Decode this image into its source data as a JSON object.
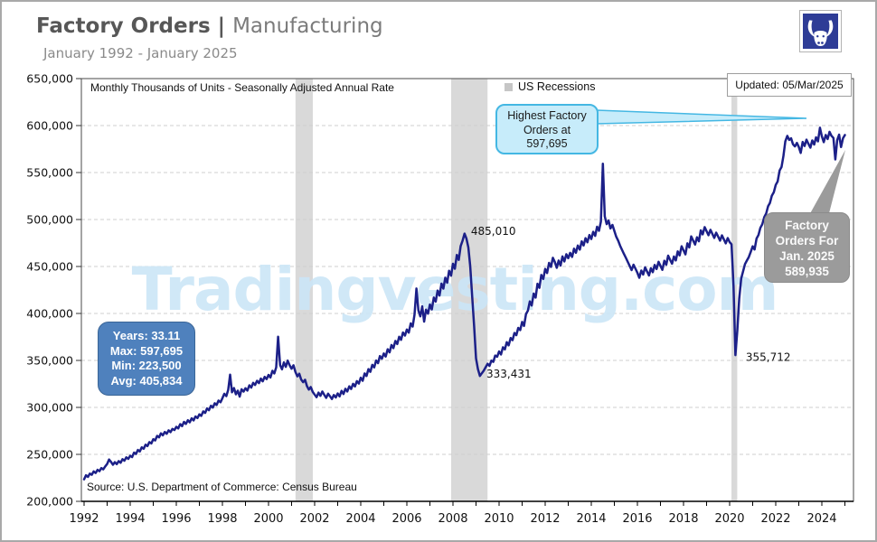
{
  "header": {
    "title_bold": "Factory Orders |",
    "title_regular": "Manufacturing",
    "subtitle": "January 1992 - January 2025"
  },
  "logo": {
    "name": "Tradingvesting bull logo",
    "bg_color": "#2e3c96"
  },
  "chart_data": {
    "type": "line",
    "title": "Factory Orders | Manufacturing",
    "subtitle": "January 1992 - January 2025",
    "units_label": "Monthly Thousands of Units - Seasonally Adjusted Annual Rate",
    "updated": "Updated: 05/Mar/2025",
    "source": "Source: U.S. Department of Commerce: Census Bureau",
    "watermark": "Tradingvesting.com",
    "watermark_color": "#cbe6f7",
    "line_color": "#1c2088",
    "recession_color": "#d9d9d9",
    "legend": [
      {
        "label": "US Recessions",
        "color": "#c6c6c6"
      }
    ],
    "ylim": [
      200000,
      650000
    ],
    "y_ticks": [
      200000,
      250000,
      300000,
      350000,
      400000,
      450000,
      500000,
      550000,
      600000,
      650000
    ],
    "x_ticks": [
      1992,
      1994,
      1996,
      1998,
      2000,
      2002,
      2004,
      2006,
      2008,
      2010,
      2012,
      2014,
      2016,
      2018,
      2020,
      2022,
      2024
    ],
    "grid": true,
    "legend_position": "top-center",
    "recessions": [
      [
        2001.17,
        2001.92
      ],
      [
        2007.92,
        2009.5
      ],
      [
        2020.08,
        2020.33
      ]
    ],
    "stats_box": {
      "lines": [
        "Years: 33.11",
        "Max: 597,695",
        "Min: 223,500",
        "Avg: 405,834"
      ]
    },
    "callout_highest": {
      "lines": [
        "Highest Factory",
        "Orders at",
        "597,695"
      ]
    },
    "callout_latest": {
      "lines": [
        "Factory",
        "Orders For",
        "Jan. 2025",
        "589,935"
      ]
    },
    "annotations": [
      {
        "label": "485,010",
        "year": 2008.78,
        "value": 483500
      },
      {
        "label": "333,431",
        "year": 2009.45,
        "value": 331500
      },
      {
        "label": "355,712",
        "year": 2020.7,
        "value": 349500
      }
    ],
    "series": {
      "name": "Factory Orders (Manufacturing)",
      "start_year": 1992,
      "frequency": "monthly",
      "values": [
        223500,
        227800,
        226100,
        229500,
        228300,
        231900,
        230200,
        233600,
        232100,
        235400,
        234000,
        237200,
        239800,
        244500,
        242000,
        238900,
        241700,
        239600,
        242800,
        241100,
        244900,
        243300,
        246800,
        245200,
        248600,
        247100,
        251900,
        250400,
        254700,
        253100,
        257500,
        256000,
        260300,
        258800,
        263100,
        261600,
        266200,
        264800,
        269700,
        268100,
        272400,
        270300,
        273800,
        271900,
        275600,
        273700,
        277100,
        275900,
        279300,
        277600,
        282200,
        280100,
        284600,
        282400,
        286300,
        284100,
        288500,
        286200,
        290400,
        288700,
        292600,
        291000,
        295800,
        294100,
        298900,
        297000,
        301700,
        299800,
        304400,
        302600,
        307300,
        305500,
        309800,
        314500,
        312000,
        318700,
        334800,
        316200,
        320600,
        313900,
        317800,
        311400,
        319300,
        316800,
        320400,
        317900,
        323600,
        321100,
        326200,
        323800,
        328400,
        325900,
        330700,
        327800,
        332500,
        330100,
        334600,
        331800,
        338900,
        336200,
        342700,
        375300,
        345100,
        340600,
        347900,
        343200,
        349800,
        344700,
        341200,
        344800,
        337600,
        333100,
        335900,
        329700,
        326800,
        329400,
        322700,
        318900,
        321600,
        316400,
        313700,
        310900,
        315800,
        312300,
        316900,
        313500,
        310200,
        314600,
        311800,
        308900,
        313200,
        310600,
        314900,
        311700,
        317600,
        314200,
        319800,
        316900,
        322400,
        319600,
        325100,
        322300,
        328000,
        325400,
        331600,
        328400,
        336200,
        333500,
        340800,
        337900,
        345300,
        342600,
        349900,
        347100,
        354600,
        351800,
        357400,
        354100,
        361900,
        358600,
        366400,
        363100,
        370800,
        367500,
        375200,
        371900,
        379700,
        376400,
        382900,
        379600,
        389400,
        386100,
        398800,
        426500,
        403200,
        396900,
        407600,
        391300,
        404100,
        399800,
        409500,
        404200,
        416900,
        412600,
        424300,
        419000,
        431700,
        426400,
        438100,
        432800,
        445500,
        440200,
        452900,
        447600,
        462300,
        457000,
        471700,
        477400,
        485010,
        479700,
        470400,
        450100,
        418800,
        386500,
        352200,
        340900,
        333431,
        336300,
        339000,
        342700,
        346400,
        344100,
        349800,
        348500,
        355200,
        353900,
        359600,
        356300,
        364000,
        361700,
        369400,
        366100,
        373800,
        371500,
        379200,
        376900,
        384600,
        382300,
        391000,
        386700,
        399400,
        403100,
        412800,
        408500,
        421200,
        416900,
        431600,
        427300,
        441000,
        436700,
        447400,
        443100,
        453800,
        449500,
        459200,
        454900,
        448600,
        456300,
        451000,
        460700,
        455400,
        463100,
        458800,
        464500,
        460200,
        468900,
        464600,
        472300,
        468000,
        476700,
        472400,
        480100,
        475800,
        483500,
        479200,
        486900,
        482600,
        492300,
        488000,
        497700,
        559400,
        503400,
        495100,
        498800,
        490500,
        494200,
        487900,
        481600,
        477300,
        472000,
        467700,
        463400,
        459100,
        454800,
        450500,
        446200,
        451900,
        447600,
        443300,
        438000,
        445700,
        441400,
        449100,
        444800,
        440500,
        448200,
        443900,
        451600,
        447300,
        455000,
        450700,
        446400,
        456100,
        451800,
        461500,
        457200,
        453000,
        460700,
        456400,
        466100,
        461800,
        471500,
        467200,
        462900,
        474600,
        470300,
        482000,
        477700,
        473400,
        481100,
        476800,
        488500,
        484200,
        491900,
        487600,
        483300,
        489000,
        484700,
        480400,
        486100,
        481800,
        477500,
        483200,
        478900,
        474600,
        480300,
        476000,
        473700,
        429400,
        355712,
        381800,
        415500,
        437200,
        444900,
        452600,
        456300,
        460000,
        465700,
        471400,
        468100,
        479800,
        483500,
        491200,
        494900,
        502600,
        506300,
        514000,
        517700,
        525400,
        529100,
        536800,
        540500,
        552200,
        555900,
        567600,
        583300,
        589000,
        584700,
        586400,
        580100,
        577800,
        581500,
        577200,
        570900,
        582600,
        578300,
        585000,
        580700,
        576400,
        584100,
        579800,
        587500,
        583200,
        597695,
        588600,
        582300,
        590000,
        585700,
        593400,
        589100,
        586800,
        563900,
        584600,
        590300,
        577100,
        586500,
        589935
      ]
    }
  }
}
